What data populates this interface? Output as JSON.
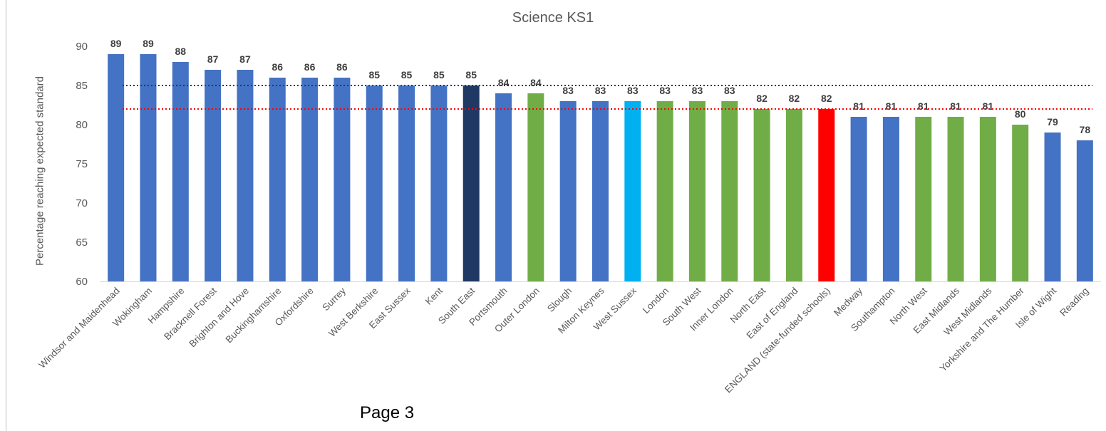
{
  "page": {
    "page_label": "Page 3"
  },
  "chart_data": {
    "type": "bar",
    "title": "Science KS1",
    "xlabel": "",
    "ylabel": "Percentage reaching expected standard",
    "ylim": [
      60,
      90
    ],
    "yticks": [
      60,
      65,
      70,
      75,
      80,
      85,
      90
    ],
    "grid": false,
    "categories": [
      "Windsor and Maidenhead",
      "Wokingham",
      "Hampshire",
      "Bracknell Forest",
      "Brighton and Hove",
      "Buckinghamshire",
      "Oxfordshire",
      "Surrey",
      "West Berkshire",
      "East Sussex",
      "Kent",
      "South East",
      "Portsmouth",
      "Outer London",
      "Slough",
      "Milton Keynes",
      "West Sussex",
      "London",
      "South West",
      "Inner London",
      "North East",
      "East of England",
      "ENGLAND (state-funded schools)",
      "Medway",
      "Southampton",
      "North West",
      "East Midlands",
      "West Midlands",
      "Yorkshire and The Humber",
      "Isle of Wight",
      "Reading"
    ],
    "values": [
      89,
      89,
      88,
      87,
      87,
      86,
      86,
      86,
      85,
      85,
      85,
      85,
      84,
      84,
      83,
      83,
      83,
      83,
      83,
      83,
      82,
      82,
      82,
      81,
      81,
      81,
      81,
      81,
      80,
      79,
      78
    ],
    "bar_colors": [
      "#4472c4",
      "#4472c4",
      "#4472c4",
      "#4472c4",
      "#4472c4",
      "#4472c4",
      "#4472c4",
      "#4472c4",
      "#4472c4",
      "#4472c4",
      "#4472c4",
      "#1f3864",
      "#4472c4",
      "#70ad47",
      "#4472c4",
      "#4472c4",
      "#00b0f0",
      "#70ad47",
      "#70ad47",
      "#70ad47",
      "#70ad47",
      "#70ad47",
      "#ff0000",
      "#4472c4",
      "#4472c4",
      "#70ad47",
      "#70ad47",
      "#70ad47",
      "#70ad47",
      "#4472c4",
      "#4472c4"
    ],
    "reference_lines": [
      {
        "value": 85,
        "color": "#1f3864",
        "style": "dotted"
      },
      {
        "value": 82,
        "color": "#ff0000",
        "style": "dotted"
      }
    ],
    "colors": {
      "label": "#404040",
      "tick": "#595959",
      "axis": "#d9d9d9"
    }
  }
}
